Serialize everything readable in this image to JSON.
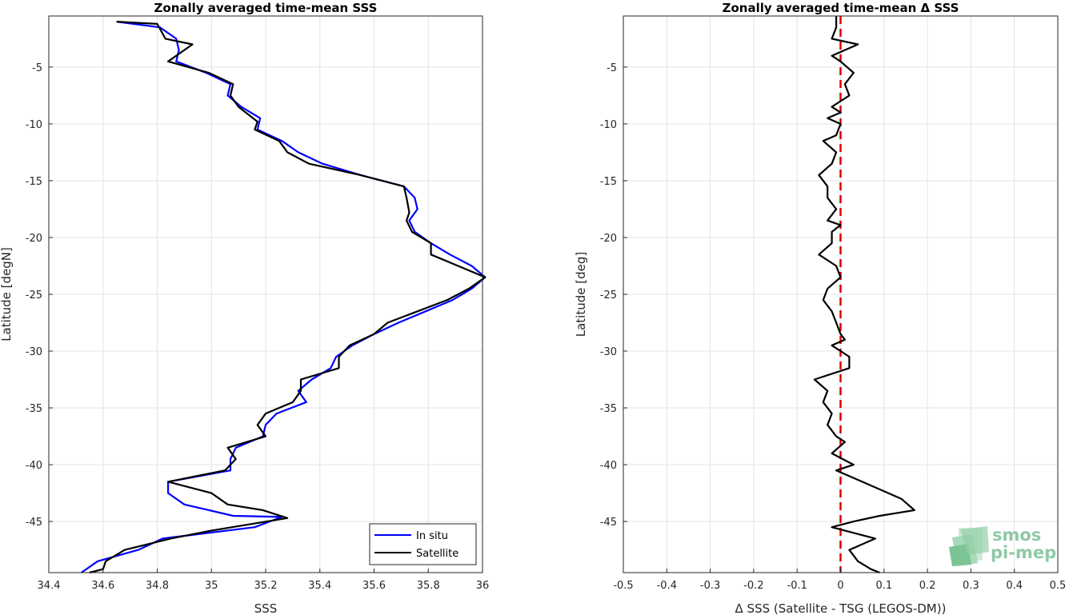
{
  "chart_data": [
    {
      "type": "line",
      "title": "Zonally averaged time-mean SSS",
      "xlabel": "SSS",
      "ylabel": "Latitude [degN]",
      "xlim": [
        34.4,
        36
      ],
      "ylim": [
        -49.5,
        -0.5
      ],
      "xticks": [
        "34.4",
        "34.6",
        "34.8",
        "35",
        "35.2",
        "35.4",
        "35.6",
        "35.8",
        "36"
      ],
      "yticks": [
        "-5",
        "-10",
        "-15",
        "-20",
        "-25",
        "-30",
        "-35",
        "-40",
        "-45"
      ],
      "grid": true,
      "legend_position": "bottom-right",
      "series": [
        {
          "name": "In situ",
          "color": "#0000ff",
          "points": [
            [
              34.65,
              -1
            ],
            [
              34.81,
              -1.5
            ],
            [
              34.87,
              -2.5
            ],
            [
              34.88,
              -3.5
            ],
            [
              34.87,
              -4.5
            ],
            [
              34.98,
              -5.5
            ],
            [
              35.07,
              -6.5
            ],
            [
              35.06,
              -7.5
            ],
            [
              35.11,
              -8.5
            ],
            [
              35.18,
              -9.5
            ],
            [
              35.17,
              -10.5
            ],
            [
              35.26,
              -11.5
            ],
            [
              35.32,
              -12.5
            ],
            [
              35.41,
              -13.5
            ],
            [
              35.55,
              -14.5
            ],
            [
              35.71,
              -15.5
            ],
            [
              35.75,
              -16.5
            ],
            [
              35.76,
              -17.5
            ],
            [
              35.73,
              -18.5
            ],
            [
              35.75,
              -19.5
            ],
            [
              35.81,
              -20.5
            ],
            [
              35.88,
              -21.5
            ],
            [
              35.96,
              -22.5
            ],
            [
              36.01,
              -23.5
            ],
            [
              35.96,
              -24.5
            ],
            [
              35.89,
              -25.5
            ],
            [
              35.79,
              -26.5
            ],
            [
              35.69,
              -27.5
            ],
            [
              35.6,
              -28.5
            ],
            [
              35.52,
              -29.5
            ],
            [
              35.46,
              -30.5
            ],
            [
              35.44,
              -31.5
            ],
            [
              35.37,
              -32.5
            ],
            [
              35.32,
              -33.5
            ],
            [
              35.35,
              -34.5
            ],
            [
              35.24,
              -35.5
            ],
            [
              35.2,
              -36.5
            ],
            [
              35.19,
              -37.5
            ],
            [
              35.09,
              -38.5
            ],
            [
              35.07,
              -39.5
            ],
            [
              35.07,
              -40.5
            ],
            [
              34.84,
              -41.5
            ],
            [
              34.84,
              -42.5
            ],
            [
              34.9,
              -43.5
            ],
            [
              35.08,
              -44.5
            ],
            [
              35.26,
              -44.6
            ],
            [
              35.16,
              -45.5
            ],
            [
              34.82,
              -46.5
            ],
            [
              34.73,
              -47.5
            ],
            [
              34.58,
              -48.5
            ],
            [
              34.52,
              -49.5
            ]
          ]
        },
        {
          "name": "Satellite",
          "color": "#000000",
          "points": [
            [
              34.65,
              -1
            ],
            [
              34.8,
              -1.2
            ],
            [
              34.83,
              -2.5
            ],
            [
              34.93,
              -3
            ],
            [
              34.84,
              -4.5
            ],
            [
              34.99,
              -5.5
            ],
            [
              35.08,
              -6.5
            ],
            [
              35.07,
              -7.5
            ],
            [
              35.1,
              -8.5
            ],
            [
              35.17,
              -9.8
            ],
            [
              35.16,
              -10.5
            ],
            [
              35.25,
              -11.5
            ],
            [
              35.28,
              -12.5
            ],
            [
              35.36,
              -13.5
            ],
            [
              35.55,
              -14.5
            ],
            [
              35.71,
              -15.5
            ],
            [
              35.72,
              -16.5
            ],
            [
              35.73,
              -17.8
            ],
            [
              35.72,
              -18.5
            ],
            [
              35.74,
              -19.5
            ],
            [
              35.81,
              -20.5
            ],
            [
              35.81,
              -21.5
            ],
            [
              35.91,
              -22.5
            ],
            [
              36.01,
              -23.5
            ],
            [
              35.95,
              -24.5
            ],
            [
              35.87,
              -25.5
            ],
            [
              35.76,
              -26.5
            ],
            [
              35.65,
              -27.5
            ],
            [
              35.6,
              -28.5
            ],
            [
              35.51,
              -29.5
            ],
            [
              35.47,
              -30.5
            ],
            [
              35.47,
              -31.5
            ],
            [
              35.33,
              -32.5
            ],
            [
              35.33,
              -33.5
            ],
            [
              35.3,
              -34.5
            ],
            [
              35.2,
              -35.5
            ],
            [
              35.17,
              -36.5
            ],
            [
              35.2,
              -37.5
            ],
            [
              35.06,
              -38.5
            ],
            [
              35.09,
              -39.5
            ],
            [
              35.05,
              -40.5
            ],
            [
              34.84,
              -41.5
            ],
            [
              35.0,
              -42.5
            ],
            [
              35.06,
              -43.5
            ],
            [
              35.19,
              -44
            ],
            [
              35.28,
              -44.7
            ],
            [
              35.0,
              -45.8
            ],
            [
              34.85,
              -46.5
            ],
            [
              34.68,
              -47.5
            ],
            [
              34.61,
              -48.5
            ],
            [
              34.6,
              -49.2
            ],
            [
              34.55,
              -49.5
            ]
          ]
        }
      ]
    },
    {
      "type": "line",
      "title": "Zonally averaged time-mean Δ SSS",
      "xlabel": "Δ SSS (Satellite - TSG (LEGOS-DM))",
      "ylabel": "Latitude [deg]",
      "xlim": [
        -0.5,
        0.5
      ],
      "ylim": [
        -49.5,
        -0.5
      ],
      "xticks": [
        "-0.5",
        "-0.4",
        "-0.3",
        "-0.2",
        "-0.1",
        "0",
        "0.1",
        "0.2",
        "0.3",
        "0.4",
        "0.5"
      ],
      "yticks": [
        "-5",
        "-10",
        "-15",
        "-20",
        "-25",
        "-30",
        "-35",
        "-40",
        "-45"
      ],
      "grid": true,
      "reference_line": {
        "x": 0,
        "color": "#e00000",
        "style": "dashed"
      },
      "series": [
        {
          "name": "",
          "color": "#000000",
          "points": [
            [
              -0.01,
              -0.5
            ],
            [
              -0.01,
              -1.5
            ],
            [
              -0.02,
              -2.5
            ],
            [
              0.04,
              -3
            ],
            [
              -0.02,
              -4
            ],
            [
              0.0,
              -4.5
            ],
            [
              0.03,
              -5.5
            ],
            [
              0.01,
              -6.5
            ],
            [
              0.02,
              -7.5
            ],
            [
              0.0,
              -8.0
            ],
            [
              -0.02,
              -8.5
            ],
            [
              0.0,
              -9.0
            ],
            [
              -0.03,
              -9.5
            ],
            [
              0.0,
              -10
            ],
            [
              -0.01,
              -11
            ],
            [
              -0.04,
              -11.5
            ],
            [
              -0.01,
              -12.5
            ],
            [
              -0.02,
              -13.5
            ],
            [
              -0.05,
              -14.5
            ],
            [
              -0.03,
              -15.5
            ],
            [
              -0.03,
              -16.5
            ],
            [
              -0.01,
              -17.5
            ],
            [
              -0.03,
              -18.5
            ],
            [
              0.0,
              -18.9
            ],
            [
              -0.02,
              -19.5
            ],
            [
              -0.02,
              -20.5
            ],
            [
              -0.05,
              -21.5
            ],
            [
              -0.01,
              -22.5
            ],
            [
              0.0,
              -23.5
            ],
            [
              -0.03,
              -24.5
            ],
            [
              -0.04,
              -25.5
            ],
            [
              -0.02,
              -26.5
            ],
            [
              -0.01,
              -27.5
            ],
            [
              0.0,
              -28.5
            ],
            [
              0.01,
              -29
            ],
            [
              -0.02,
              -29.5
            ],
            [
              0.0,
              -30
            ],
            [
              0.02,
              -30.5
            ],
            [
              0.02,
              -31.5
            ],
            [
              -0.06,
              -32.5
            ],
            [
              -0.03,
              -33.5
            ],
            [
              -0.04,
              -34.5
            ],
            [
              -0.02,
              -35.5
            ],
            [
              -0.03,
              -36.5
            ],
            [
              -0.01,
              -37.5
            ],
            [
              0.01,
              -38.0
            ],
            [
              -0.02,
              -39
            ],
            [
              0.03,
              -40
            ],
            [
              -0.01,
              -40.5
            ],
            [
              0.05,
              -41.5
            ],
            [
              0.11,
              -42.5
            ],
            [
              0.14,
              -43
            ],
            [
              0.17,
              -44
            ],
            [
              0.09,
              -44.5
            ],
            [
              0.03,
              -45
            ],
            [
              -0.02,
              -45.5
            ],
            [
              0.08,
              -46.5
            ],
            [
              0.02,
              -47.5
            ],
            [
              0.04,
              -48.5
            ],
            [
              0.07,
              -49.2
            ],
            [
              0.09,
              -49.5
            ]
          ]
        }
      ]
    }
  ],
  "legend": {
    "items": [
      {
        "label": "In situ",
        "color": "#0000ff"
      },
      {
        "label": "Satellite",
        "color": "#000000"
      }
    ]
  },
  "logo": {
    "line1": "smos",
    "line2": "pi-mep"
  }
}
